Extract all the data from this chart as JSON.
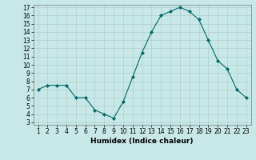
{
  "x": [
    1,
    2,
    3,
    4,
    5,
    6,
    7,
    8,
    9,
    10,
    11,
    12,
    13,
    14,
    15,
    16,
    17,
    18,
    19,
    20,
    21,
    22,
    23
  ],
  "y": [
    7,
    7.5,
    7.5,
    7.5,
    6,
    6,
    4.5,
    4,
    3.5,
    5.5,
    8.5,
    11.5,
    14,
    16,
    16.5,
    17,
    16.5,
    15.5,
    13,
    10.5,
    9.5,
    7,
    6
  ],
  "line_color": "#006666",
  "marker_color": "#006666",
  "bg_color": "#c8e8e8",
  "grid_color": "#b0cece",
  "xlabel": "Humidex (Indice chaleur)",
  "ylim_min": 3,
  "ylim_max": 17,
  "xlim_min": 1,
  "xlim_max": 23,
  "yticks": [
    3,
    4,
    5,
    6,
    7,
    8,
    9,
    10,
    11,
    12,
    13,
    14,
    15,
    16,
    17
  ],
  "xticks": [
    1,
    2,
    3,
    4,
    5,
    6,
    7,
    8,
    9,
    10,
    11,
    12,
    13,
    14,
    15,
    16,
    17,
    18,
    19,
    20,
    21,
    22,
    23
  ],
  "label_fontsize": 6.5,
  "tick_fontsize": 5.5
}
